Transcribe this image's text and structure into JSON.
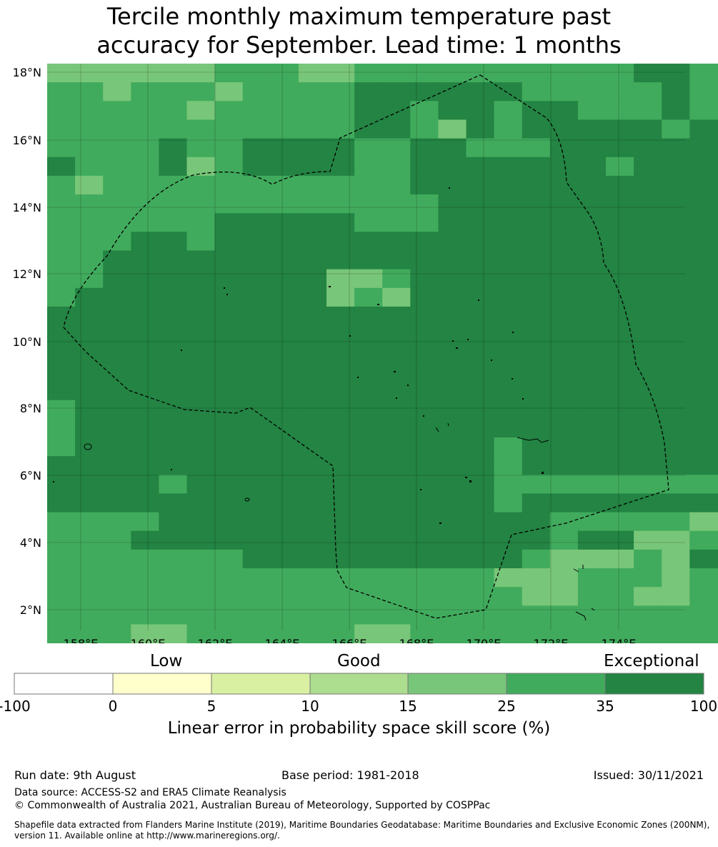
{
  "title": {
    "line1": "Tercile monthly maximum temperature past",
    "line2": "accuracy for September. Lead time: 1 months"
  },
  "map": {
    "lat_labels": [
      "18°N",
      "16°N",
      "14°N",
      "12°N",
      "10°N",
      "8°N",
      "6°N",
      "4°N",
      "2°N"
    ],
    "lon_labels": [
      "158°E",
      "160°E",
      "162°E",
      "164°E",
      "166°E",
      "168°E",
      "170°E",
      "172°E",
      "174°E"
    ],
    "colors": {
      "c15_25": "#78c679",
      "c25_35": "#41ab5d",
      "c35_100": "#238443",
      "boundary": "#000000"
    }
  },
  "colorbar": {
    "category_labels": {
      "low": "Low",
      "good": "Good",
      "exceptional": "Exceptional"
    },
    "ticks": [
      "-100",
      "0",
      "5",
      "10",
      "15",
      "25",
      "35",
      "100"
    ],
    "colors": [
      "#ffffff",
      "#ffffcc",
      "#d9f0a3",
      "#addd8e",
      "#78c679",
      "#41ab5d",
      "#238443"
    ],
    "label": "Linear error in probability space skill score (%)"
  },
  "footer": {
    "run_date": "Run date: 9th August",
    "base_period": "Base period: 1981-2018",
    "issued": "Issued: 30/11/2021",
    "data_source": "Data source: ACCESS-S2 and ERA5 Climate Reanalysis",
    "copyright": "© Commonwealth of Australia 2021, Australian Bureau of Meteorology, Supported by COSPPac",
    "shapefile_line1": "Shapefile data extracted from Flanders Marine Institute (2019), Maritime Boundaries Geodatabase: Maritime Boundaries and Exclusive Economic Zones (200NM),",
    "shapefile_line2": "version 11. Available online at http://www.marineregions.org/."
  }
}
